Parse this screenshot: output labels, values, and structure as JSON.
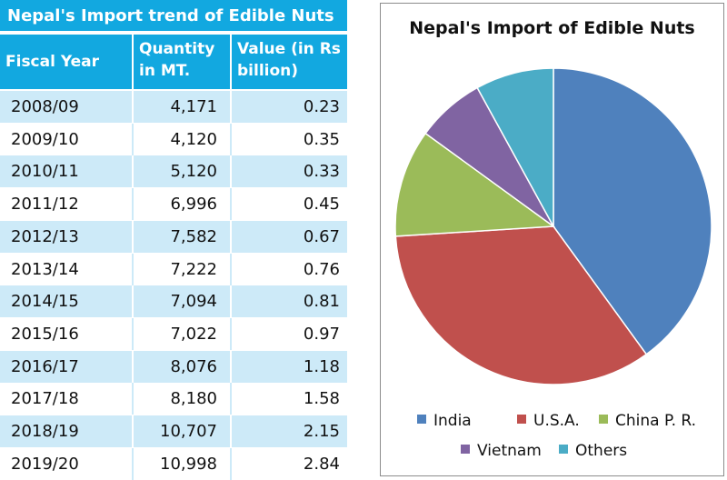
{
  "table": {
    "title": "Nepal's Import trend of Edible Nuts",
    "headers": {
      "year": "Fiscal Year",
      "quantity": "Quantity in MT.",
      "value": "Value (in Rs billion)"
    },
    "rows": [
      {
        "year": "2008/09",
        "quantity": "4,171",
        "value": "0.23"
      },
      {
        "year": "2009/10",
        "quantity": "4,120",
        "value": "0.35"
      },
      {
        "year": "2010/11",
        "quantity": "5,120",
        "value": "0.33"
      },
      {
        "year": "2011/12",
        "quantity": "6,996",
        "value": "0.45"
      },
      {
        "year": "2012/13",
        "quantity": "7,582",
        "value": "0.67"
      },
      {
        "year": "2013/14",
        "quantity": "7,222",
        "value": "0.76"
      },
      {
        "year": "2014/15",
        "quantity": "7,094",
        "value": "0.81"
      },
      {
        "year": "2015/16",
        "quantity": "7,022",
        "value": "0.97"
      },
      {
        "year": "2016/17",
        "quantity": "8,076",
        "value": "1.18"
      },
      {
        "year": "2017/18",
        "quantity": "8,180",
        "value": "1.58"
      },
      {
        "year": "2018/19",
        "quantity": "10,707",
        "value": "2.15"
      },
      {
        "year": "2019/20",
        "quantity": "10,998",
        "value": "2.84"
      }
    ],
    "colors": {
      "header": "#12a8e0",
      "stripe": "#cdeaf8"
    }
  },
  "chart_data": {
    "type": "pie",
    "title": "Nepal's Import of Edible Nuts",
    "categories": [
      "India",
      "U.S.A.",
      "China P. R.",
      "Vietnam",
      "Others"
    ],
    "values": [
      40,
      34,
      11,
      7,
      8
    ],
    "colors": [
      "#4f81bd",
      "#c0504d",
      "#9bbb59",
      "#8064a2",
      "#4bacc6"
    ],
    "legend": "bottom"
  }
}
